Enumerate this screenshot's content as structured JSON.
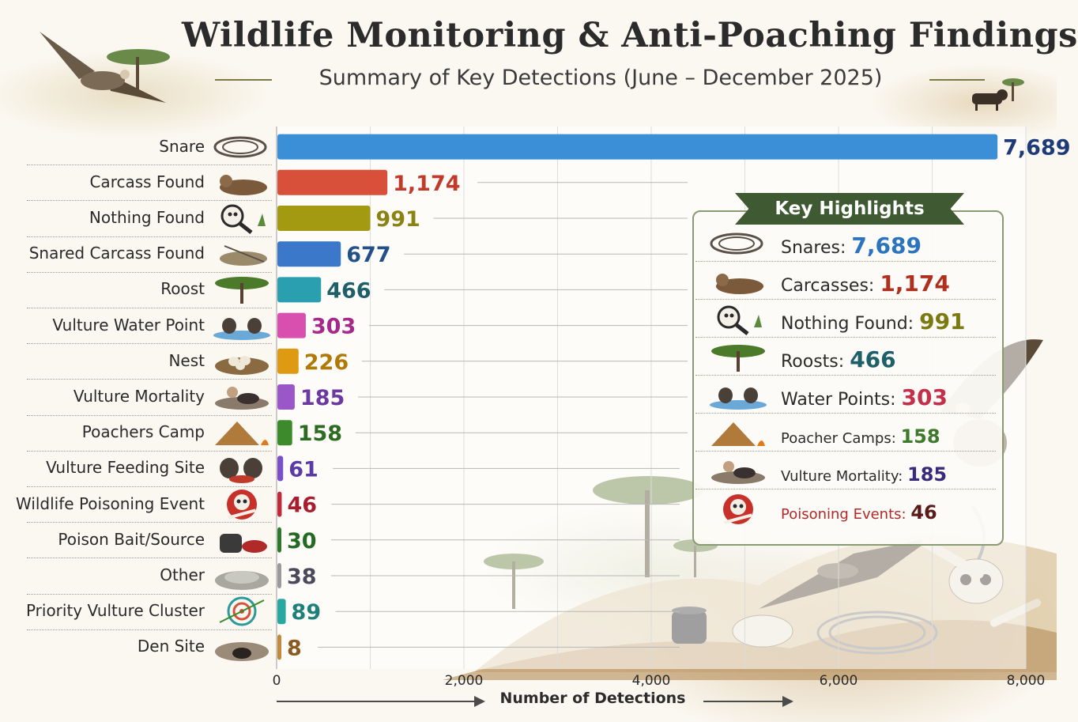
{
  "title": "Wildlife Monitoring & Anti-Poaching Findings",
  "subtitle": "Summary of Key Detections (June – December 2025)",
  "chart_data": {
    "type": "bar",
    "orientation": "horizontal",
    "categories": [
      "Snare",
      "Carcass Found",
      "Nothing Found",
      "Snared Carcass Found",
      "Roost",
      "Vulture Water Point",
      "Nest",
      "Vulture Mortality",
      "Poachers Camp",
      "Vulture Feeding Site",
      "Wildlife Poisoning Event",
      "Poison Bait/Source",
      "Other",
      "Priority Vulture Cluster",
      "Den Site"
    ],
    "values": [
      7689,
      1174,
      991,
      677,
      466,
      303,
      226,
      185,
      158,
      61,
      46,
      30,
      38,
      89,
      8
    ],
    "value_labels": [
      "7,689",
      "1,174",
      "991",
      "677",
      "466",
      "303",
      "226",
      "185",
      "158",
      "61",
      "46",
      "30",
      "38",
      "89",
      "8"
    ],
    "colors": [
      "#3a8fd6",
      "#d9503a",
      "#a39a12",
      "#3b78c9",
      "#2a9fb0",
      "#d94fb0",
      "#de9a12",
      "#9a57c8",
      "#3d8a2c",
      "#7a4fc8",
      "#c22a3a",
      "#2f7a2a",
      "#9a9a9a",
      "#27a8a0",
      "#c28a3a"
    ],
    "label_colors": [
      "#1f3a78",
      "#c23a2a",
      "#8a8212",
      "#24508a",
      "#1e5f6a",
      "#a62a8a",
      "#b07a08",
      "#6a3aa0",
      "#2d6a22",
      "#5a3aa6",
      "#a81e2e",
      "#256a22",
      "#4a4a5a",
      "#1e8078",
      "#8a5a22"
    ],
    "icons": [
      "coiled-rope-snare-icon",
      "animal-carcass-icon",
      "magnifying-glass-icon",
      "snared-carcass-icon",
      "acacia-tree-icon",
      "vultures-at-water-icon",
      "nest-with-eggs-icon",
      "dead-vulture-icon",
      "poacher-tent-fire-icon",
      "feeding-vultures-icon",
      "skull-crossbones-icon",
      "poison-bottle-bait-icon",
      "stones-icon",
      "target-cluster-icon",
      "den-burrow-icon"
    ],
    "xlabel": "Number of Detections",
    "ylabel": "",
    "xlim": [
      0,
      8000
    ],
    "xticks": [
      0,
      2000,
      4000,
      6000,
      8000
    ],
    "xtick_labels": [
      "0",
      "2,000",
      "4,000",
      "6,000",
      "8,000"
    ],
    "grid": true
  },
  "highlights": {
    "title": "Key Highlights",
    "items": [
      {
        "label": "Snares:",
        "value": "7,689",
        "color": "#2a74c0",
        "icon": "coiled-rope-icon"
      },
      {
        "label": "Carcasses:",
        "value": "1,174",
        "color": "#b03020",
        "icon": "carcass-icon"
      },
      {
        "label": "Nothing Found:",
        "value": "991",
        "color": "#7a7a10",
        "icon": "magnifying-glass-icon"
      },
      {
        "label": "Roosts:",
        "value": "466",
        "color": "#1e5f6a",
        "icon": "acacia-tree-icon"
      },
      {
        "label": "Water Points:",
        "value": "303",
        "color": "#c2304a",
        "icon": "vultures-at-water-icon"
      },
      {
        "label": "Poacher Camps:",
        "value": "158",
        "color": "#3d7a2c",
        "icon": "tent-fire-icon"
      },
      {
        "label": "Vulture Mortality:",
        "value": "185",
        "color": "#3a2a7a",
        "icon": "dead-vulture-icon"
      },
      {
        "label": "Poisoning Events:",
        "value": "46",
        "color": "#5a1a1a",
        "label_color": "#b02a2a",
        "icon": "red-skull-icon"
      }
    ]
  }
}
